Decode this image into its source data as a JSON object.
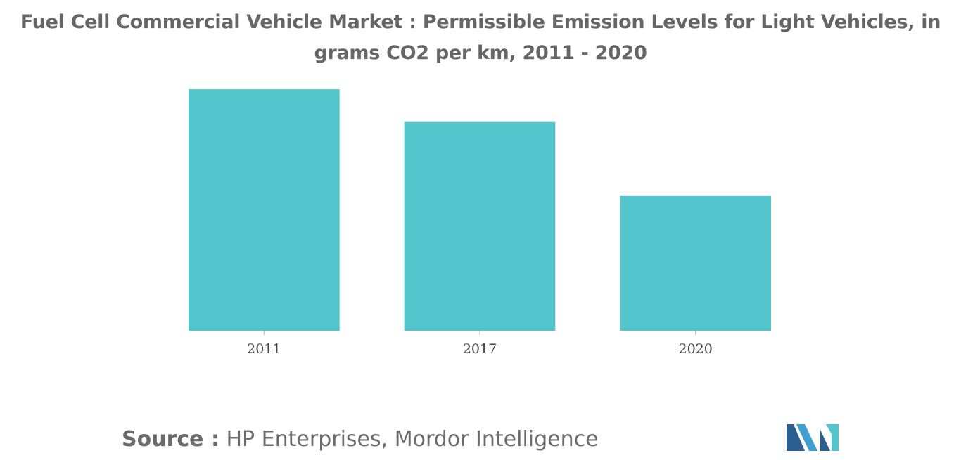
{
  "chart_data": {
    "type": "bar",
    "title_lines": [
      "Fuel Cell Commercial Vehicle Market : Permissible Emission Levels for Light Vehicles, in",
      "grams CO2 per km, 2011 - 2020"
    ],
    "categories": [
      "2011",
      "2017",
      "2020"
    ],
    "values": [
      170,
      147,
      95
    ],
    "ylim": [
      0,
      175
    ],
    "grid": false,
    "legend": "none",
    "bar_color": "#52c4cb"
  },
  "source": {
    "label": "Source :",
    "text": "HP Enterprises, Mordor Intelligence"
  },
  "logo": {
    "icon": "mordor-intelligence-logo-icon",
    "colors": [
      "#2a5f8f",
      "#3f9fd0",
      "#52c4cb"
    ]
  }
}
